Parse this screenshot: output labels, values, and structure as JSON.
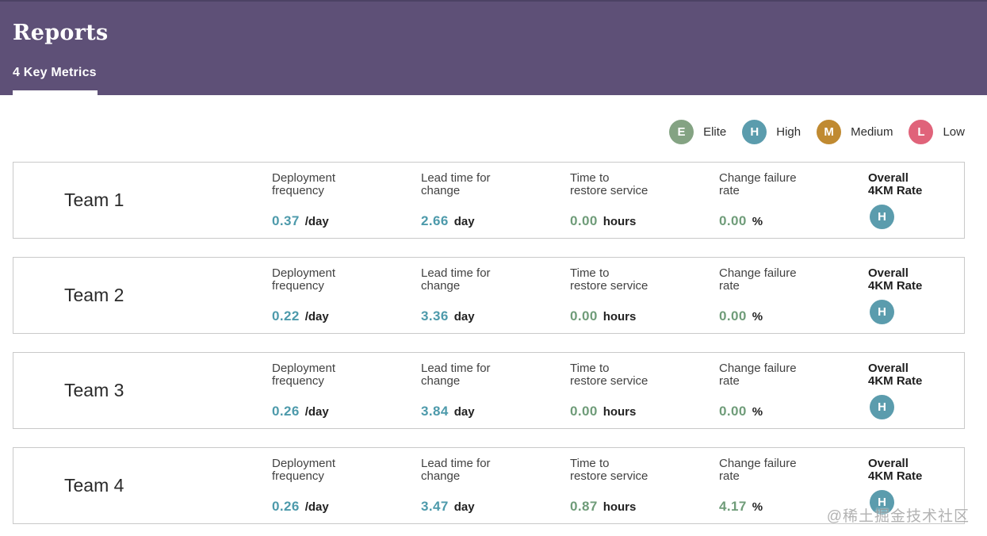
{
  "colors": {
    "header_bg": "#5e5077",
    "header_top": "#4c4264",
    "elite": "#84a383",
    "high": "#5b9cad",
    "medium": "#c08a31",
    "low": "#e0637a",
    "value_high": "#4d9aab",
    "value_elite": "#6f9c79",
    "card_border": "#c9c9c9"
  },
  "header": {
    "title": "Reports",
    "tab": "4 Key Metrics"
  },
  "legend": [
    {
      "letter": "E",
      "label": "Elite"
    },
    {
      "letter": "H",
      "label": "High"
    },
    {
      "letter": "M",
      "label": "Medium"
    },
    {
      "letter": "L",
      "label": "Low"
    }
  ],
  "metric_labels": [
    {
      "line1": "Deployment",
      "line2": "frequency"
    },
    {
      "line1": "Lead time for",
      "line2": "change"
    },
    {
      "line1": "Time to",
      "line2": "restore service"
    },
    {
      "line1": "Change failure",
      "line2": "rate"
    },
    {
      "line1": "Overall",
      "line2": "4KM Rate"
    }
  ],
  "teams": [
    {
      "name": "Team 1",
      "metrics": [
        {
          "value": "0.37",
          "unit": "/day",
          "rating": "high"
        },
        {
          "value": "2.66",
          "unit": "day",
          "rating": "high"
        },
        {
          "value": "0.00",
          "unit": "hours",
          "rating": "elite"
        },
        {
          "value": "0.00",
          "unit": "%",
          "rating": "elite"
        }
      ],
      "overall": {
        "letter": "H",
        "rating": "high"
      }
    },
    {
      "name": "Team 2",
      "metrics": [
        {
          "value": "0.22",
          "unit": "/day",
          "rating": "high"
        },
        {
          "value": "3.36",
          "unit": "day",
          "rating": "high"
        },
        {
          "value": "0.00",
          "unit": "hours",
          "rating": "elite"
        },
        {
          "value": "0.00",
          "unit": "%",
          "rating": "elite"
        }
      ],
      "overall": {
        "letter": "H",
        "rating": "high"
      }
    },
    {
      "name": "Team 3",
      "metrics": [
        {
          "value": "0.26",
          "unit": "/day",
          "rating": "high"
        },
        {
          "value": "3.84",
          "unit": "day",
          "rating": "high"
        },
        {
          "value": "0.00",
          "unit": "hours",
          "rating": "elite"
        },
        {
          "value": "0.00",
          "unit": "%",
          "rating": "elite"
        }
      ],
      "overall": {
        "letter": "H",
        "rating": "high"
      }
    },
    {
      "name": "Team 4",
      "metrics": [
        {
          "value": "0.26",
          "unit": "/day",
          "rating": "high"
        },
        {
          "value": "3.47",
          "unit": "day",
          "rating": "high"
        },
        {
          "value": "0.87",
          "unit": "hours",
          "rating": "elite"
        },
        {
          "value": "4.17",
          "unit": "%",
          "rating": "elite"
        }
      ],
      "overall": {
        "letter": "H",
        "rating": "high"
      }
    }
  ],
  "watermark": "@稀土掘金技术社区"
}
